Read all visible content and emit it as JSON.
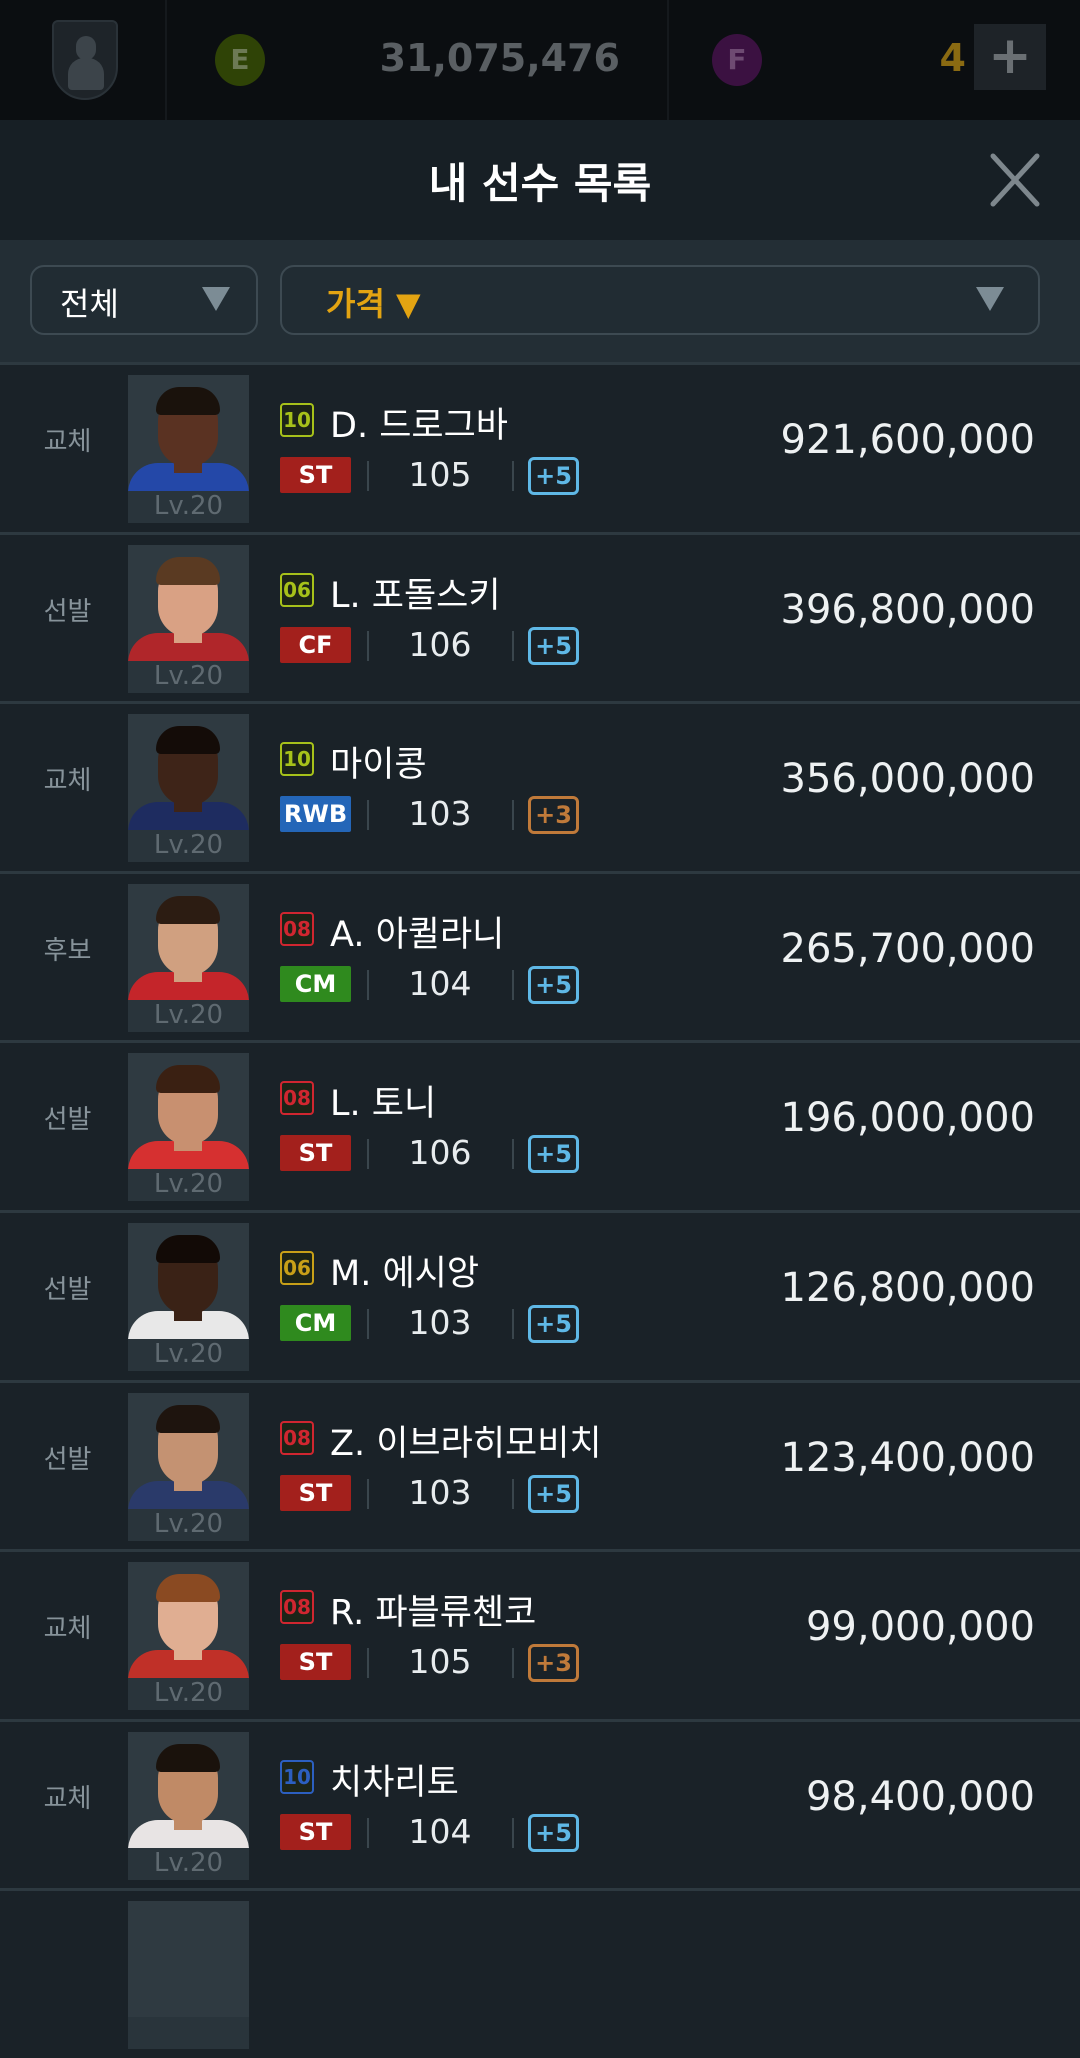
{
  "topbar": {
    "manager_icon": "manager-shield-icon",
    "ep_icon_label": "E",
    "ep_amount": "31,075,476",
    "fp_icon_label": "F",
    "fp_amount": "4",
    "add_label": "+"
  },
  "header": {
    "title": "내 선수 목록",
    "close_icon": "close-icon"
  },
  "filters": {
    "position_filter": "전체",
    "sort_filter": "가격 ▼"
  },
  "players": [
    {
      "status": "교체",
      "season": "10",
      "season_color": "#a7c21a",
      "name": "D. 드로그바",
      "position": "ST",
      "pos_color": "#a3201c",
      "ovr": "105",
      "upgrade": "+5",
      "upgrade_color": "#5fb8e6",
      "level": "Lv.20",
      "price": "921,600,000",
      "skin": "#5a3222",
      "hair": "#1a120c",
      "shirt": "#2448a8"
    },
    {
      "status": "선발",
      "season": "06",
      "season_color": "#a7c21a",
      "name": "L. 포돌스키",
      "position": "CF",
      "pos_color": "#a3201c",
      "ovr": "106",
      "upgrade": "+5",
      "upgrade_color": "#5fb8e6",
      "level": "Lv.20",
      "price": "396,800,000",
      "skin": "#d9a184",
      "hair": "#5a3a22",
      "shirt": "#b0262a"
    },
    {
      "status": "교체",
      "season": "10",
      "season_color": "#a7c21a",
      "name": "마이콩",
      "position": "RWB",
      "pos_color": "#2466b8",
      "ovr": "103",
      "upgrade": "+3",
      "upgrade_color": "#c07a3a",
      "level": "Lv.20",
      "price": "356,000,000",
      "skin": "#3e2418",
      "hair": "#140c08",
      "shirt": "#1e2c60"
    },
    {
      "status": "후보",
      "season": "08",
      "season_color": "#d02630",
      "name": "A. 아퀼라니",
      "position": "CM",
      "pos_color": "#2f8a1e",
      "ovr": "104",
      "upgrade": "+5",
      "upgrade_color": "#5fb8e6",
      "level": "Lv.20",
      "price": "265,700,000",
      "skin": "#d0a080",
      "hair": "#2c1c12",
      "shirt": "#c4252a"
    },
    {
      "status": "선발",
      "season": "08",
      "season_color": "#d02630",
      "name": "L. 토니",
      "position": "ST",
      "pos_color": "#a3201c",
      "ovr": "106",
      "upgrade": "+5",
      "upgrade_color": "#5fb8e6",
      "level": "Lv.20",
      "price": "196,000,000",
      "skin": "#c89070",
      "hair": "#3a2012",
      "shirt": "#d63030"
    },
    {
      "status": "선발",
      "season": "06",
      "season_color": "#c8a018",
      "name": "M. 에시앙",
      "position": "CM",
      "pos_color": "#2f8a1e",
      "ovr": "103",
      "upgrade": "+5",
      "upgrade_color": "#5fb8e6",
      "level": "Lv.20",
      "price": "126,800,000",
      "skin": "#3a2216",
      "hair": "#120a06",
      "shirt": "#e8e8e8"
    },
    {
      "status": "선발",
      "season": "08",
      "season_color": "#d02630",
      "name": "Z. 이브라히모비치",
      "position": "ST",
      "pos_color": "#a3201c",
      "ovr": "103",
      "upgrade": "+5",
      "upgrade_color": "#5fb8e6",
      "level": "Lv.20",
      "price": "123,400,000",
      "skin": "#c49272",
      "hair": "#1e140e",
      "shirt": "#2a3a6a"
    },
    {
      "status": "교체",
      "season": "08",
      "season_color": "#d02630",
      "name": "R. 파블류첸코",
      "position": "ST",
      "pos_color": "#a3201c",
      "ovr": "105",
      "upgrade": "+3",
      "upgrade_color": "#c07a3a",
      "level": "Lv.20",
      "price": "99,000,000",
      "skin": "#e0ae92",
      "hair": "#8a4a22",
      "shirt": "#c03028"
    },
    {
      "status": "교체",
      "season": "10",
      "season_color": "#2c5fc0",
      "name": "치차리토",
      "position": "ST",
      "pos_color": "#a3201c",
      "ovr": "104",
      "upgrade": "+5",
      "upgrade_color": "#5fb8e6",
      "level": "Lv.20",
      "price": "98,400,000",
      "skin": "#c08a66",
      "hair": "#1a120c",
      "shirt": "#e8e4e4"
    }
  ]
}
